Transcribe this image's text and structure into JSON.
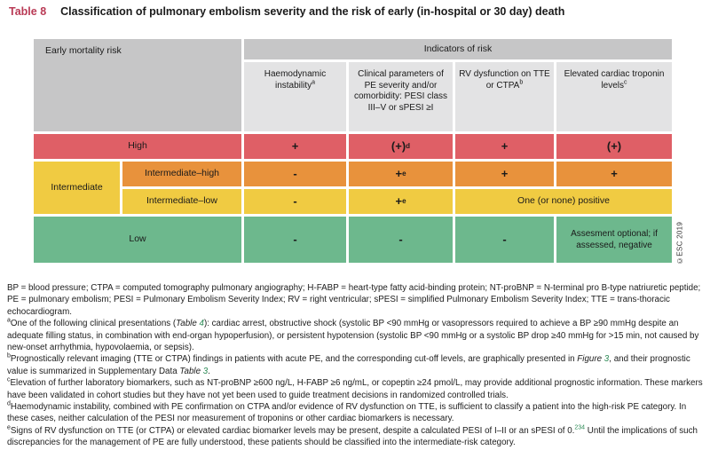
{
  "colors": {
    "title_red": "#b93a55",
    "high_red": "#df5f66",
    "orange": "#e8923c",
    "yellow": "#f0cb42",
    "green": "#6db88d",
    "header_gray_dark": "#c6c6c7",
    "header_gray_light": "#e3e3e4",
    "link_green": "#2e8b57"
  },
  "title": {
    "tag": "Table 8",
    "text": "Classification of pulmonary embolism severity and the risk of early (in-hospital or 30 day) death"
  },
  "table": {
    "corner": "Early mortality risk",
    "group_header": "Indicators of risk",
    "col_headers": [
      {
        "label": "Haemodynamic instability",
        "sup": "a"
      },
      {
        "label": "Clinical parameters of PE severity and/or comorbidity: PESI class III–V or sPESI ≥I",
        "sup": ""
      },
      {
        "label": "RV dysfunction on TTE or CTPA",
        "sup": "b"
      },
      {
        "label": "Elevated cardiac troponin levels",
        "sup": "c"
      }
    ],
    "rows": {
      "high": {
        "label": "High",
        "c1": "+",
        "c2": "(+)",
        "c2sup": "d",
        "c3": "+",
        "c4": "(+)"
      },
      "intermediate_label": "Intermediate",
      "int_high": {
        "label": "Intermediate–high",
        "c1": "-",
        "c2": "+",
        "c2sup": "e",
        "c3": "+",
        "c4": "+"
      },
      "int_low": {
        "label": "Intermediate–low",
        "c1": "-",
        "c2": "+",
        "c2sup": "e",
        "c34": "One (or none) positive"
      },
      "low": {
        "label": "Low",
        "c1": "-",
        "c2": "-",
        "c3": "-",
        "c4": "Assesment optional; if assessed, negative"
      }
    },
    "copyright": "©ESC 2019"
  },
  "footnotes": {
    "abbrev": "BP = blood pressure; CTPA = computed tomography pulmonary angiography; H-FABP = heart-type fatty acid-binding protein; NT-proBNP = N-terminal pro B-type natriuretic peptide; PE = pulmonary embolism; PESI = Pulmonary Embolism Severity Index; RV = right ventricular; sPESI = simplified Pulmonary Embolism Severity Index; TTE = trans-thoracic echocardiogram.",
    "a": {
      "sup": "a",
      "t1": "One of the following clinical presentations (",
      "it1": "Table ",
      "link1": "4",
      "t2": "): cardiac arrest, obstructive shock (systolic BP <90 mmHg or vasopressors required to achieve a BP ≥90 mmHg despite an adequate filling status, in combination with end-organ hypoperfusion), or persistent hypotension (systolic BP <90 mmHg or a systolic BP drop ≥40 mmHg for >15 min, not caused by new-onset arrhythmia, hypovolaemia, or sepsis)."
    },
    "b": {
      "sup": "b",
      "t1": "Prognostically relevant imaging (TTE or CTPA) findings in patients with acute PE, and the corresponding cut-off levels, are graphically presented in ",
      "it1": "Figure ",
      "link1": "3",
      "t2": ", and their prognostic value is summarized in Supplementary Data ",
      "it2": "Table ",
      "link2": "3",
      "t3": "."
    },
    "c": {
      "sup": "c",
      "t1": "Elevation of further laboratory biomarkers, such as NT-proBNP ≥600 ng/L, H-FABP ≥6 ng/mL, or copeptin ≥24 pmol/L, may provide additional prognostic information. These markers have been validated in cohort studies but they have not yet been used to guide treatment decisions in randomized controlled trials."
    },
    "d": {
      "sup": "d",
      "t1": "Haemodynamic instability, combined with PE confirmation on CTPA and/or evidence of RV dysfunction on TTE, is sufficient to classify a patient into the high-risk PE category. In these cases, neither calculation of the PESI nor measurement of troponins or other cardiac biomarkers is necessary."
    },
    "e": {
      "sup": "e",
      "t1": "Signs of RV dysfunction on TTE (or CTPA) or elevated cardiac biomarker levels may be present, despite a calculated PESI of I–II or an sPESI of 0.",
      "link1": "234",
      "t2": " Until the implications of such discrepancies for the management of PE are fully understood, these patients should be classified into the intermediate-risk category."
    }
  }
}
